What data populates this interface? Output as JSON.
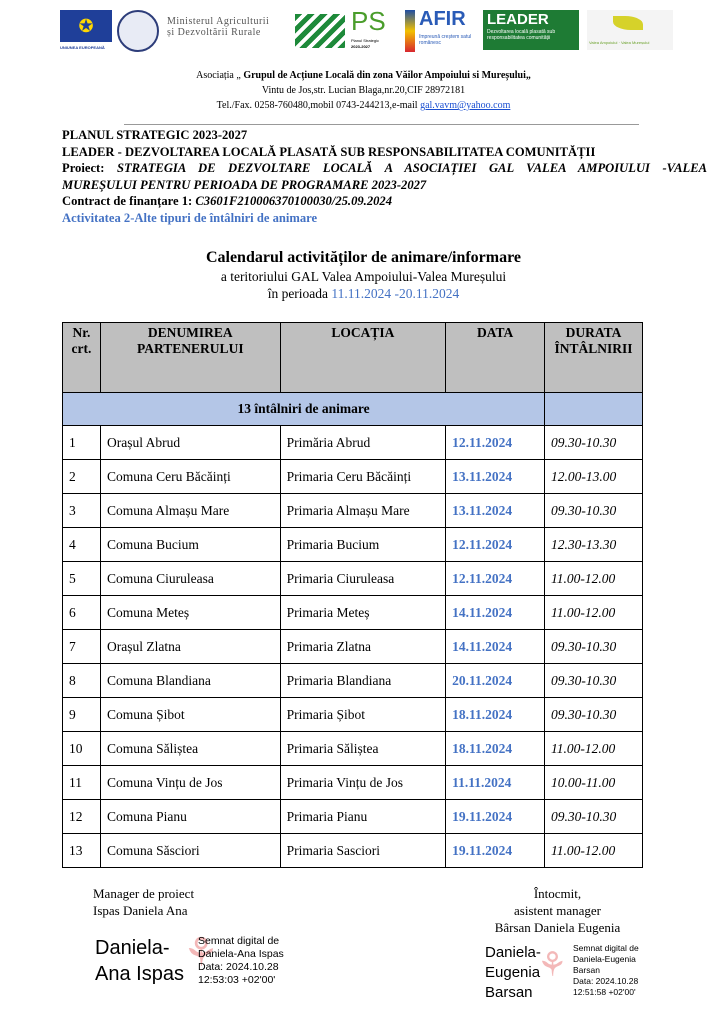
{
  "header": {
    "logos": {
      "eu": "UNIUNEA EUROPEANĂ",
      "ministry": "MINISTERUL AGRICULTURII ȘI DEZVOLTĂRII RURALE",
      "ministry_line1": "Ministerul Agriculturii",
      "ministry_line2": "și Dezvoltării Rurale",
      "ps_title": "PS",
      "ps_sub": "Planul Strategic",
      "ps_years": "2023-2027",
      "afir": "AFIR",
      "afir_sub": "împreună creștem satul românesc",
      "leader": "LEADER",
      "leader_sub": "Dezvoltarea locală plasată sub responsabilitatea comunității",
      "gal": "Valea Ampoiului · Valea Mureșului"
    },
    "assoc_prefix": "Asociația „ ",
    "assoc_name": "Grupul de Acțiune Locală  din zona Văilor Ampoiului  si Mureșului„",
    "address": "Vintu de Jos,str. Lucian Blaga,nr.20,CIF 28972181",
    "contact_prefix": "Tel./Fax. 0258-760480,mobil  0743-244213,e-mail ",
    "email": "gal.vavm@yahoo.com"
  },
  "intro": {
    "line1": "PLANUL STRATEGIC 2023-2027",
    "line2": "LEADER - DEZVOLTAREA LOCALĂ PLASATĂ SUB RESPONSABILITATEA COMUNITĂȚII",
    "project_label": "Proiect:",
    "project_text1": "STRATEGIA DE DEZVOLTARE LOCALĂ A ASOCIAȚIEI GAL VALEA AMPOIULUI -VALEA",
    "project_text2": "MUREȘULUI PENTRU PERIOADA DE PROGRAMARE 2023-2027",
    "contract_label": "Contract de finanțare 1:",
    "contract_value": "C3601F210006370100030/25.09.2024",
    "activity": "Activitatea 2-Alte tipuri de întâlniri de animare"
  },
  "title": {
    "main": "Calendarul activităților de animare/informare",
    "sub": "a teritoriului GAL Valea Ampoiului-Valea Mureșului",
    "period_prefix": "în perioada ",
    "period": "11.11.2024 -20.11.2024"
  },
  "table": {
    "headers": [
      "Nr. crt.",
      "DENUMIREA PARTENERULUI",
      "LOCAȚIA",
      "DATA",
      "DURATA ÎNTÂLNIRII"
    ],
    "section": "13 întâlniri de animare",
    "rows": [
      [
        "1",
        "Orașul Abrud",
        "Primăria Abrud",
        "12.11.2024",
        "09.30-10.30"
      ],
      [
        "2",
        "Comuna Ceru Băcăinți",
        "Primaria Ceru Băcăinți",
        "13.11.2024",
        "12.00-13.00"
      ],
      [
        "3",
        "Comuna Almașu Mare",
        "Primaria Almașu Mare",
        "13.11.2024",
        "09.30-10.30"
      ],
      [
        "4",
        "Comuna Bucium",
        "Primaria Bucium",
        "12.11.2024",
        "12.30-13.30"
      ],
      [
        "5",
        "Comuna Ciuruleasa",
        "Primaria Ciuruleasa",
        "12.11.2024",
        "11.00-12.00"
      ],
      [
        "6",
        "Comuna Meteș",
        "Primaria Meteș",
        "14.11.2024",
        "11.00-12.00"
      ],
      [
        "7",
        "Orașul Zlatna",
        "Primaria Zlatna",
        "14.11.2024",
        "09.30-10.30"
      ],
      [
        "8",
        "Comuna Blandiana",
        "Primaria Blandiana",
        "20.11.2024",
        "09.30-10.30"
      ],
      [
        "9",
        "Comuna Șibot",
        "Primaria Șibot",
        "18.11.2024",
        "09.30-10.30"
      ],
      [
        "10",
        "Comuna Săliștea",
        "Primaria Săliștea",
        "18.11.2024",
        "11.00-12.00"
      ],
      [
        "11",
        "Comuna Vințu de Jos",
        "Primaria Vințu de Jos",
        "11.11.2024",
        "10.00-11.00"
      ],
      [
        "12",
        "Comuna Pianu",
        "Primaria Pianu",
        "19.11.2024",
        "09.30-10.30"
      ],
      [
        "13",
        "Comuna Săsciori",
        "Primaria Sasciori",
        "19.11.2024",
        "11.00-12.00"
      ]
    ]
  },
  "signatures": {
    "left": {
      "role": "Manager de proiect",
      "name": "Ispas Daniela Ana",
      "sig_name1": "Daniela-",
      "sig_name2": "Ana Ispas",
      "sig_line1": "Semnat digital de",
      "sig_line2": "Daniela-Ana Ispas",
      "sig_line3": "Data: 2024.10.28",
      "sig_line4": "12:53:03 +02'00'"
    },
    "right": {
      "role1": "Întocmit,",
      "role2": "asistent manager",
      "name": "Bârsan Daniela Eugenia",
      "sig_name1": "Daniela-",
      "sig_name2": "Eugenia",
      "sig_name3": "Barsan",
      "sig_line1": "Semnat digital de",
      "sig_line2": "Daniela-Eugenia",
      "sig_line3": "Barsan",
      "sig_line4": "Data: 2024.10.28",
      "sig_line5": "12:51:58 +02'00'"
    }
  },
  "colors": {
    "accent": "#4472c4",
    "header_gray": "#bfbfbf",
    "section_blue": "#b4c6e7",
    "leader_green": "#1e7b34"
  }
}
